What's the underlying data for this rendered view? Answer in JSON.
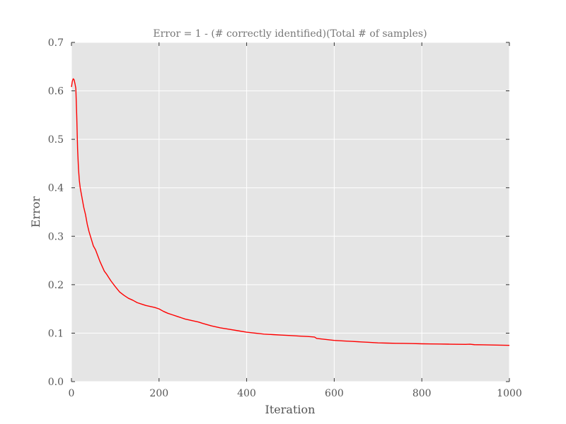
{
  "chart_data": {
    "type": "line",
    "title": "Error = 1 - (# correctly identified)(Total # of samples)",
    "xlabel": "Iteration",
    "ylabel": "Error",
    "xlim": [
      0,
      1000
    ],
    "ylim": [
      0,
      0.7
    ],
    "xticks": [
      0,
      200,
      400,
      600,
      800,
      1000
    ],
    "xtick_labels": [
      "0",
      "200",
      "400",
      "600",
      "800",
      "1000"
    ],
    "yticks": [
      0,
      0.1,
      0.2,
      0.3,
      0.4,
      0.5,
      0.6,
      0.7
    ],
    "ytick_labels": [
      "0.0",
      "0.1",
      "0.2",
      "0.3",
      "0.4",
      "0.5",
      "0.6",
      "0.7"
    ],
    "grid": true,
    "background": "#e5e5e5",
    "grid_color": "#ffffff",
    "series": [
      {
        "color": "#ff0000",
        "x": [
          0,
          2,
          4,
          6,
          8,
          10,
          12,
          14,
          16,
          18,
          20,
          22,
          25,
          28,
          32,
          36,
          40,
          45,
          50,
          55,
          60,
          65,
          70,
          75,
          80,
          85,
          90,
          95,
          100,
          110,
          120,
          130,
          140,
          150,
          160,
          170,
          180,
          190,
          200,
          210,
          220,
          230,
          240,
          250,
          260,
          270,
          280,
          290,
          300,
          320,
          340,
          360,
          380,
          400,
          420,
          440,
          460,
          480,
          500,
          520,
          540,
          555,
          560,
          580,
          600,
          620,
          640,
          660,
          680,
          700,
          720,
          740,
          760,
          780,
          800,
          820,
          840,
          860,
          880,
          900,
          910,
          920,
          940,
          960,
          980,
          1000
        ],
        "y": [
          0.608,
          0.62,
          0.625,
          0.623,
          0.615,
          0.605,
          0.55,
          0.48,
          0.44,
          0.415,
          0.4,
          0.39,
          0.375,
          0.36,
          0.345,
          0.325,
          0.31,
          0.295,
          0.28,
          0.272,
          0.26,
          0.248,
          0.238,
          0.228,
          0.222,
          0.215,
          0.208,
          0.202,
          0.196,
          0.185,
          0.178,
          0.172,
          0.168,
          0.163,
          0.16,
          0.157,
          0.155,
          0.153,
          0.15,
          0.145,
          0.141,
          0.138,
          0.135,
          0.132,
          0.129,
          0.127,
          0.125,
          0.123,
          0.12,
          0.115,
          0.111,
          0.108,
          0.105,
          0.102,
          0.1,
          0.098,
          0.097,
          0.096,
          0.095,
          0.094,
          0.093,
          0.092,
          0.089,
          0.087,
          0.085,
          0.084,
          0.083,
          0.082,
          0.081,
          0.08,
          0.0795,
          0.079,
          0.0788,
          0.0785,
          0.078,
          0.0778,
          0.0775,
          0.0773,
          0.077,
          0.0768,
          0.0772,
          0.0762,
          0.0759,
          0.0755,
          0.0752,
          0.0748
        ]
      }
    ]
  }
}
